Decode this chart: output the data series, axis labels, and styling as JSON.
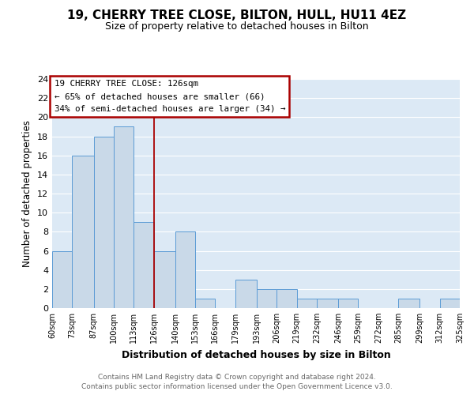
{
  "title_line1": "19, CHERRY TREE CLOSE, BILTON, HULL, HU11 4EZ",
  "title_line2": "Size of property relative to detached houses in Bilton",
  "xlabel": "Distribution of detached houses by size in Bilton",
  "ylabel": "Number of detached properties",
  "bar_edges": [
    60,
    73,
    87,
    100,
    113,
    126,
    140,
    153,
    166,
    179,
    193,
    206,
    219,
    232,
    246,
    259,
    272,
    285,
    299,
    312,
    325
  ],
  "bar_heights": [
    6,
    16,
    18,
    19,
    9,
    6,
    8,
    1,
    0,
    3,
    2,
    2,
    1,
    1,
    1,
    0,
    0,
    1,
    0,
    1
  ],
  "bar_color": "#c9d9e8",
  "bar_edgecolor": "#5b9bd5",
  "reference_line_x": 126,
  "reference_line_color": "#aa0000",
  "ylim": [
    0,
    24
  ],
  "yticks": [
    0,
    2,
    4,
    6,
    8,
    10,
    12,
    14,
    16,
    18,
    20,
    22,
    24
  ],
  "annotation_title": "19 CHERRY TREE CLOSE: 126sqm",
  "annotation_line1": "← 65% of detached houses are smaller (66)",
  "annotation_line2": "34% of semi-detached houses are larger (34) →",
  "footer_line1": "Contains HM Land Registry data © Crown copyright and database right 2024.",
  "footer_line2": "Contains public sector information licensed under the Open Government Licence v3.0.",
  "tick_labels": [
    "60sqm",
    "73sqm",
    "87sqm",
    "100sqm",
    "113sqm",
    "126sqm",
    "140sqm",
    "153sqm",
    "166sqm",
    "179sqm",
    "193sqm",
    "206sqm",
    "219sqm",
    "232sqm",
    "246sqm",
    "259sqm",
    "272sqm",
    "285sqm",
    "299sqm",
    "312sqm",
    "325sqm"
  ],
  "grid_color": "#ffffff",
  "background_color": "#dce9f5",
  "figure_background": "#ffffff"
}
